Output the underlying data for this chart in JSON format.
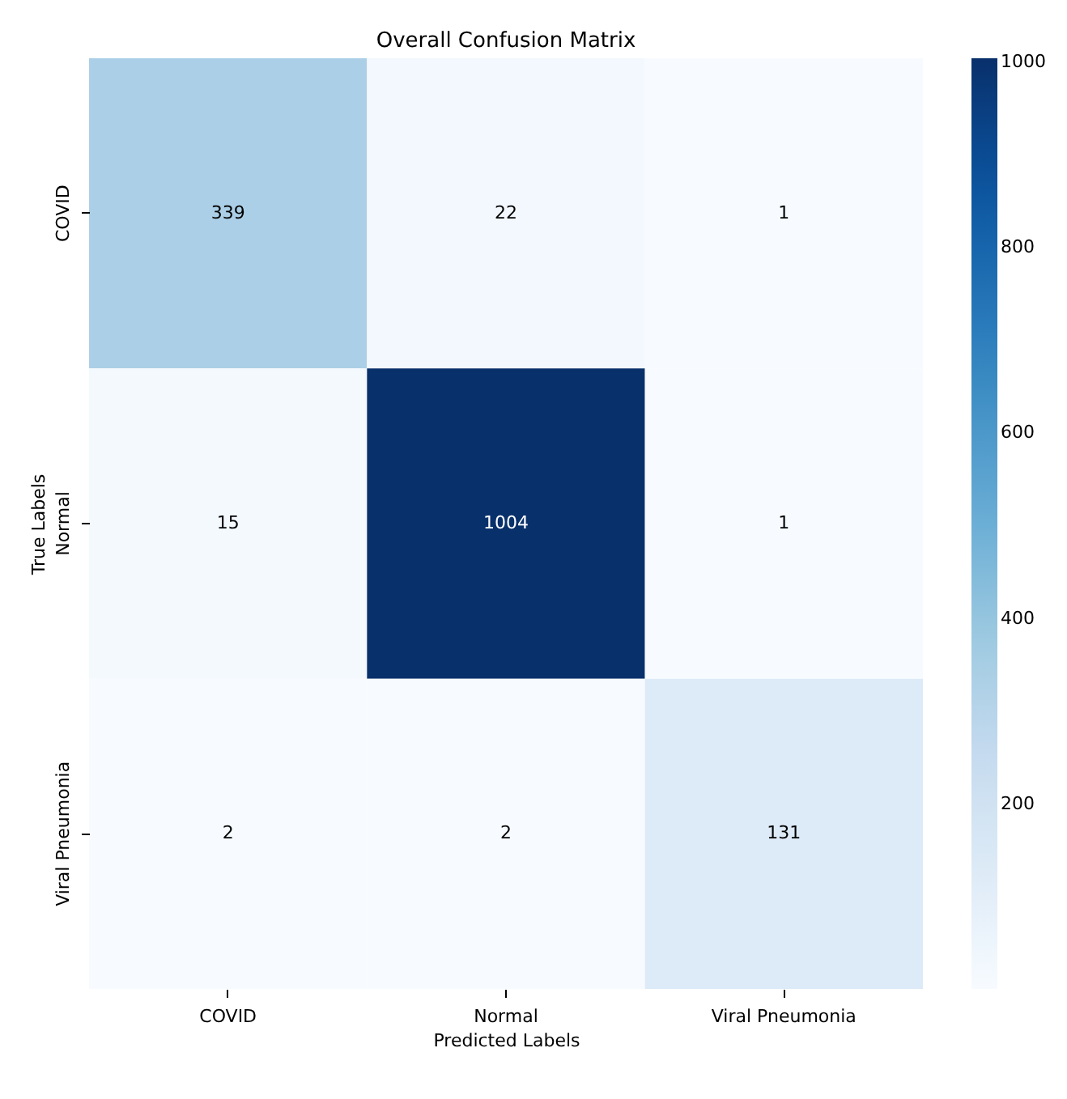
{
  "chart_data": {
    "type": "heatmap",
    "title": "Overall Confusion Matrix",
    "xlabel": "Predicted Labels",
    "ylabel": "True Labels",
    "categories": [
      "COVID",
      "Normal",
      "Viral Pneumonia"
    ],
    "y_categories": [
      "COVID",
      "Normal",
      "Viral Pneumonia"
    ],
    "cells": [
      [
        339,
        22,
        1
      ],
      [
        15,
        1004,
        1
      ],
      [
        2,
        2,
        131
      ]
    ],
    "data_labels": true,
    "clim": [
      1,
      1004
    ],
    "cticks": [
      200,
      400,
      600,
      800,
      1000
    ]
  }
}
